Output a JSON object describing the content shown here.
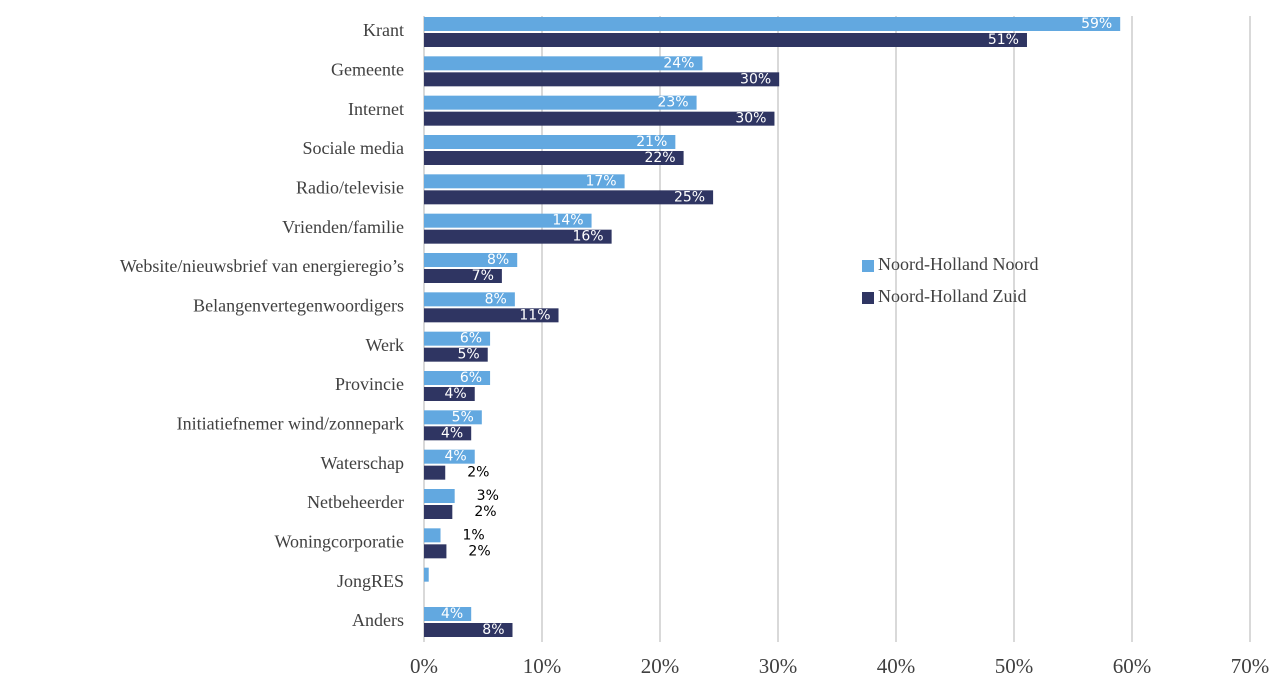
{
  "chart_data": {
    "type": "bar",
    "orientation": "horizontal",
    "categories": [
      "Krant",
      "Gemeente",
      "Internet",
      "Sociale media",
      "Radio/televisie",
      "Vrienden/familie",
      "Website/nieuwsbrief van energieregio’s",
      "Belangenvertegenwoordigers",
      "Werk",
      "Provincie",
      "Initiatiefnemer wind/zonnepark",
      "Waterschap",
      "Netbeheerder",
      "Woningcorporatie",
      "JongRES",
      "Anders"
    ],
    "series": [
      {
        "name": "Noord-Holland Noord",
        "color": "#62a8e0",
        "values": [
          59.0,
          23.6,
          23.1,
          21.3,
          17.0,
          14.2,
          7.9,
          7.7,
          5.6,
          5.6,
          4.9,
          4.3,
          2.6,
          1.4,
          0.4,
          4.0
        ],
        "value_labels": [
          "59%",
          "24%",
          "23%",
          "21%",
          "17%",
          "14%",
          "8%",
          "8%",
          "6%",
          "6%",
          "5%",
          "4%",
          "3%",
          "1%",
          null,
          "4%"
        ]
      },
      {
        "name": "Noord-Holland Zuid",
        "color": "#2f3562",
        "values": [
          51.1,
          30.1,
          29.7,
          22.0,
          24.5,
          15.9,
          6.6,
          11.4,
          5.4,
          4.3,
          4.0,
          1.8,
          2.4,
          1.9,
          null,
          7.5
        ],
        "value_labels": [
          "51%",
          "30%",
          "30%",
          "22%",
          "25%",
          "16%",
          "7%",
          "11%",
          "5%",
          "4%",
          "4%",
          "2%",
          "2%",
          "2%",
          null,
          "8%"
        ]
      }
    ],
    "xlim": [
      0,
      70
    ],
    "xticks": [
      {
        "value": 0,
        "label": "0%"
      },
      {
        "value": 10,
        "label": "10%"
      },
      {
        "value": 20,
        "label": "20%"
      },
      {
        "value": 30,
        "label": "30%"
      },
      {
        "value": 40,
        "label": "40%"
      },
      {
        "value": 50,
        "label": "50%"
      },
      {
        "value": 60,
        "label": "60%"
      },
      {
        "value": 70,
        "label": "70%"
      }
    ],
    "grid": true,
    "legend": "right"
  }
}
